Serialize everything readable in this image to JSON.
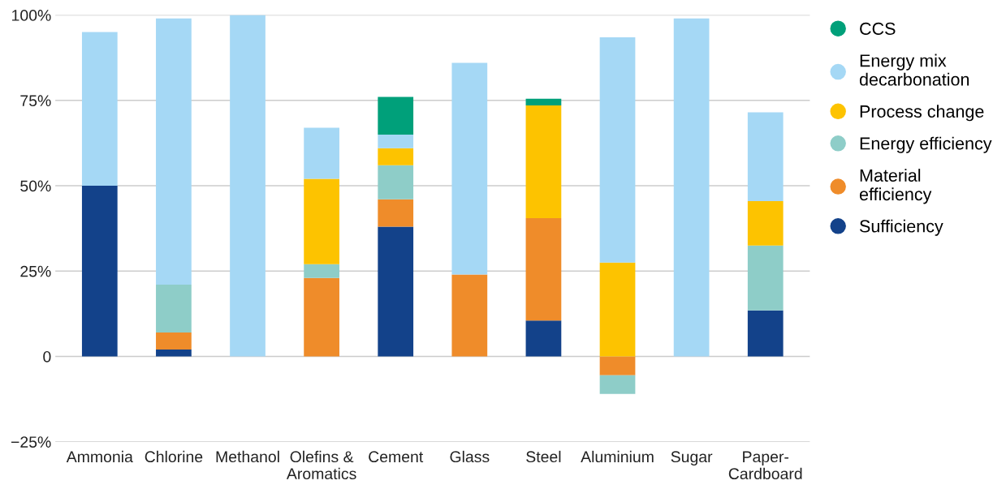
{
  "chart_data": {
    "type": "bar",
    "stacked": true,
    "categories": [
      "Ammonia",
      "Chlorine",
      "Methanol",
      "Olefins &\nAromatics",
      "Cement",
      "Glass",
      "Steel",
      "Aluminium",
      "Sugar",
      "Paper-\nCardboard"
    ],
    "series": [
      {
        "name": "Sufficiency",
        "color": "#13428a",
        "values": [
          50,
          2,
          null,
          null,
          38,
          null,
          10.5,
          null,
          null,
          13.5
        ]
      },
      {
        "name": "Material\nefficiency",
        "color": "#ef8c2a",
        "values": [
          null,
          5,
          null,
          23,
          8,
          24,
          30,
          -5.5,
          null,
          null
        ]
      },
      {
        "name": "Energy efficiency",
        "color": "#8ecdc8",
        "values": [
          null,
          14,
          null,
          4,
          10,
          null,
          null,
          -5.5,
          null,
          19
        ]
      },
      {
        "name": "Process change",
        "color": "#fdc300",
        "values": [
          null,
          null,
          null,
          25,
          5,
          null,
          33,
          27.5,
          null,
          13
        ]
      },
      {
        "name": "Energy mix\ndecarbonation",
        "color": "#a5d8f5",
        "values": [
          45,
          78,
          100,
          15,
          4,
          62,
          null,
          66,
          99,
          26
        ]
      },
      {
        "name": "CCS",
        "color": "#00a07a",
        "values": [
          null,
          null,
          null,
          null,
          11,
          null,
          2,
          null,
          null,
          null
        ]
      }
    ],
    "ylim": [
      -25,
      100
    ],
    "yticks": [
      {
        "value": -25,
        "label": "−25%"
      },
      {
        "value": 0,
        "label": "0"
      },
      {
        "value": 25,
        "label": "25%"
      },
      {
        "value": 50,
        "label": "50%"
      },
      {
        "value": 75,
        "label": "75%"
      },
      {
        "value": 100,
        "label": "100%"
      }
    ],
    "grid": "y",
    "legend": "right"
  }
}
